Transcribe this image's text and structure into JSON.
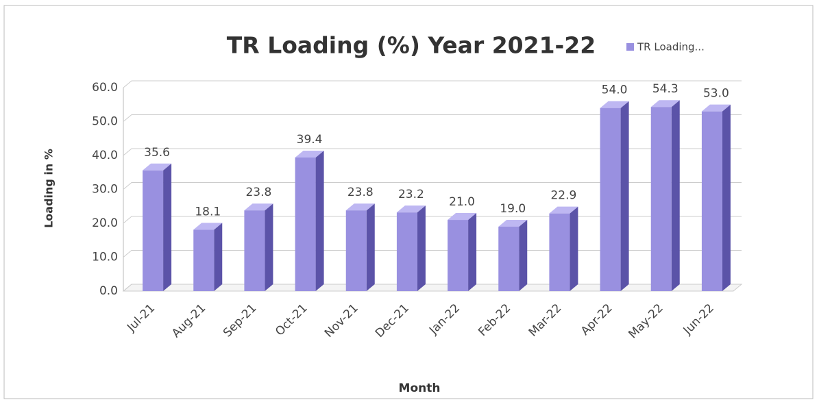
{
  "chart_data": {
    "type": "bar",
    "title": "TR Loading (%) Year 2021-22",
    "x_label": "Month",
    "y_label": "Loading in %",
    "categories": [
      "Jul-21",
      "Aug-21",
      "Sep-21",
      "Oct-21",
      "Nov-21",
      "Dec-21",
      "Jan-22",
      "Feb-22",
      "Mar-22",
      "Apr-22",
      "May-22",
      "Jun-22"
    ],
    "series": [
      {
        "name": "TR Loading...",
        "color": "#9990e0",
        "values": [
          35.6,
          18.1,
          23.8,
          39.4,
          23.8,
          23.2,
          21.0,
          19.0,
          22.9,
          54.0,
          54.3,
          53.0
        ],
        "value_labels": [
          "35.6",
          "18.1",
          "23.8",
          "39.4",
          "23.8",
          "23.2",
          "21.0",
          "19.0",
          "22.9",
          "54.0",
          "54.3",
          "53.0"
        ]
      }
    ],
    "ylim": [
      0,
      60
    ],
    "yticks": [
      {
        "value": 0,
        "label": "0.0"
      },
      {
        "value": 10,
        "label": "10.0"
      },
      {
        "value": 20,
        "label": "20.0"
      },
      {
        "value": 30,
        "label": "30.0"
      },
      {
        "value": 40,
        "label": "40.0"
      },
      {
        "value": 50,
        "label": "50.0"
      },
      {
        "value": 60,
        "label": "60.0"
      }
    ],
    "grid": true,
    "legend": "top-right"
  }
}
